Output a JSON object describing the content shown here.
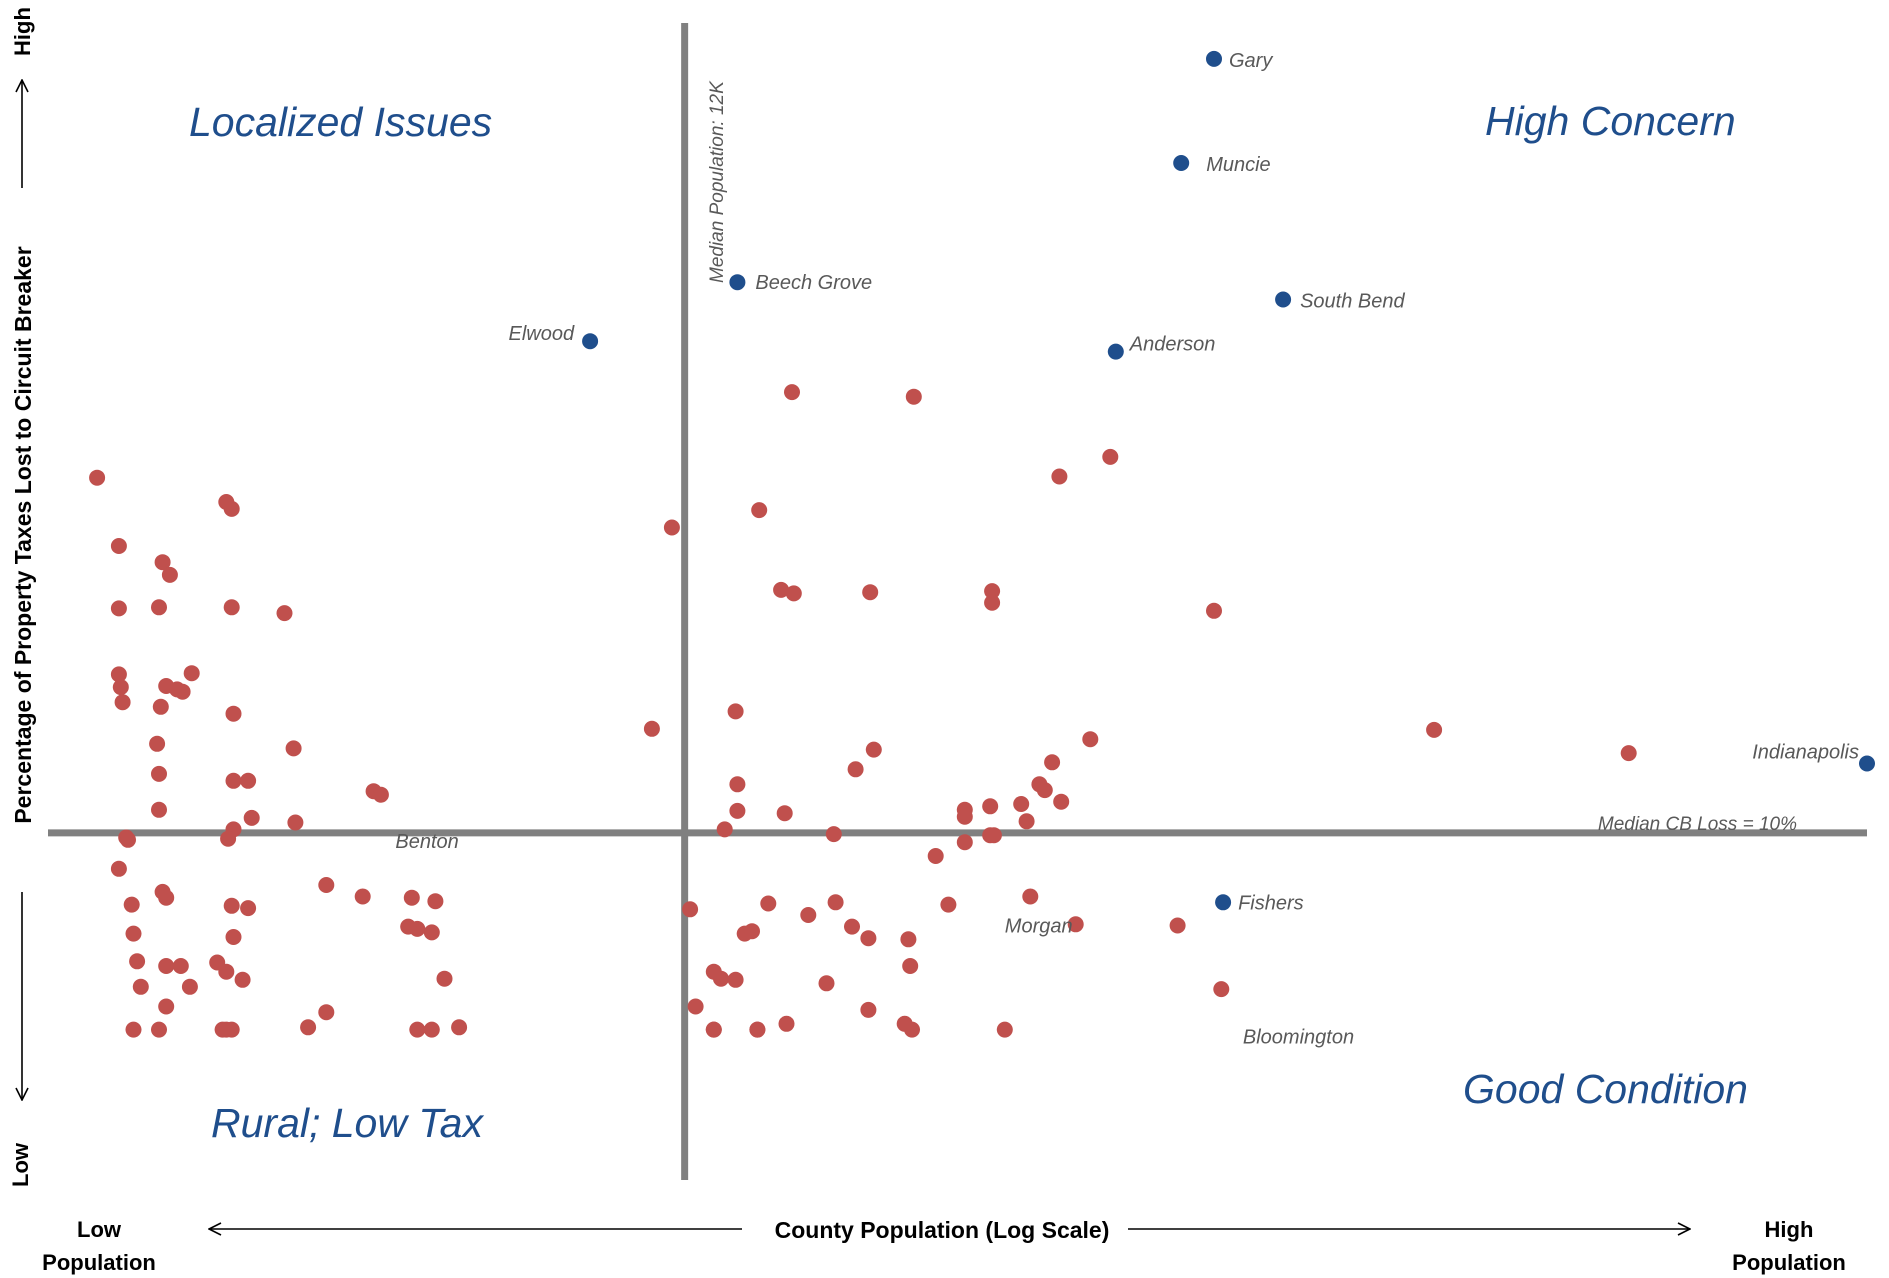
{
  "chart_data": {
    "type": "scatter",
    "xlabel": "County Population  (Log Scale)",
    "x_low_label": [
      "Low",
      "Population"
    ],
    "x_high_label": [
      "High",
      "Population"
    ],
    "ylabel": "Percentage of Property Taxes  Lost to Circuit Breaker",
    "y_high_label": "High",
    "y_low_label": "Low",
    "x_range": [
      0,
      100
    ],
    "y_range": [
      0,
      100
    ],
    "x_log_scale": true,
    "grid": false,
    "legend": "none",
    "quadrants": {
      "top_left": "Localized Issues",
      "top_right": "High Concern",
      "bottom_left": "Rural; Low Tax",
      "bottom_right": "Good Condition"
    },
    "reference_lines": {
      "x_median": {
        "value": 35.0,
        "label": "Median Population: 12K"
      },
      "y_median": {
        "value": 30.0,
        "label": "Median CB Loss = 10%"
      }
    },
    "colors": {
      "highlighted": "#1f4e8c",
      "other": "#c0504d",
      "reference": "#808080",
      "quadrant_text": "#1f4e8c"
    },
    "highlighted_series": [
      {
        "label": "Gary",
        "x": 64.1,
        "y": 96.9
      },
      {
        "label": "Muncie",
        "x": 62.3,
        "y": 87.9
      },
      {
        "label": "Beech Grove",
        "x": 37.9,
        "y": 77.6
      },
      {
        "label": "South Bend",
        "x": 67.9,
        "y": 76.1
      },
      {
        "label": "Elwood",
        "x": 29.8,
        "y": 72.5
      },
      {
        "label": "Anderson",
        "x": 58.7,
        "y": 71.6
      },
      {
        "label": "Indianapolis",
        "x": 100.0,
        "y": 36.0
      },
      {
        "label": "Fishers",
        "x": 64.6,
        "y": 24.0
      }
    ],
    "other_labels": [
      {
        "label": "Benton",
        "x": 19.1,
        "y": 29.3
      },
      {
        "label": "Morgan",
        "x": 52.6,
        "y": 22.0
      },
      {
        "label": "Bloomington",
        "x": 64.7,
        "y": 12.4
      }
    ],
    "points": [
      [
        2.7,
        60.7
      ],
      [
        3.9,
        54.8
      ],
      [
        3.9,
        49.4
      ],
      [
        3.9,
        43.7
      ],
      [
        4.0,
        42.6
      ],
      [
        4.1,
        41.3
      ],
      [
        4.3,
        29.6
      ],
      [
        3.9,
        26.9
      ],
      [
        4.4,
        29.4
      ],
      [
        4.7,
        21.3
      ],
      [
        4.9,
        18.9
      ],
      [
        5.1,
        16.7
      ],
      [
        4.7,
        13.0
      ],
      [
        4.6,
        23.8
      ],
      [
        6.3,
        53.4
      ],
      [
        6.1,
        49.5
      ],
      [
        6.0,
        37.7
      ],
      [
        6.2,
        40.9
      ],
      [
        6.1,
        35.1
      ],
      [
        6.1,
        32.0
      ],
      [
        6.7,
        52.3
      ],
      [
        6.5,
        42.7
      ],
      [
        7.4,
        42.2
      ],
      [
        7.9,
        43.8
      ],
      [
        7.1,
        42.4
      ],
      [
        6.3,
        24.9
      ],
      [
        6.5,
        24.4
      ],
      [
        7.3,
        18.5
      ],
      [
        7.8,
        16.7
      ],
      [
        6.1,
        13.0
      ],
      [
        6.5,
        15.0
      ],
      [
        6.5,
        18.5
      ],
      [
        9.8,
        58.6
      ],
      [
        10.1,
        58.0
      ],
      [
        10.2,
        40.3
      ],
      [
        10.1,
        49.5
      ],
      [
        13.0,
        49.0
      ],
      [
        10.2,
        34.5
      ],
      [
        10.2,
        30.3
      ],
      [
        9.9,
        29.5
      ],
      [
        10.1,
        23.7
      ],
      [
        11.0,
        34.5
      ],
      [
        11.2,
        31.3
      ],
      [
        11.0,
        23.5
      ],
      [
        10.2,
        21.0
      ],
      [
        9.8,
        18.0
      ],
      [
        10.7,
        17.3
      ],
      [
        9.3,
        18.8
      ],
      [
        9.8,
        13.0
      ],
      [
        10.1,
        13.0
      ],
      [
        9.6,
        13.0
      ],
      [
        13.6,
        30.9
      ],
      [
        13.5,
        37.3
      ],
      [
        15.3,
        25.5
      ],
      [
        17.3,
        24.5
      ],
      [
        17.9,
        33.6
      ],
      [
        18.3,
        33.3
      ],
      [
        20.0,
        24.4
      ],
      [
        20.3,
        21.7
      ],
      [
        19.8,
        21.9
      ],
      [
        21.3,
        24.1
      ],
      [
        21.1,
        21.4
      ],
      [
        21.8,
        17.4
      ],
      [
        21.1,
        13.0
      ],
      [
        20.3,
        13.0
      ],
      [
        22.6,
        13.2
      ],
      [
        14.3,
        13.2
      ],
      [
        15.3,
        14.5
      ],
      [
        33.2,
        39.0
      ],
      [
        34.3,
        56.4
      ],
      [
        37.9,
        34.2
      ],
      [
        39.1,
        57.9
      ],
      [
        37.9,
        31.9
      ],
      [
        37.8,
        40.5
      ],
      [
        37.2,
        30.3
      ],
      [
        35.6,
        15.0
      ],
      [
        37.0,
        17.4
      ],
      [
        36.6,
        18.0
      ],
      [
        37.8,
        17.3
      ],
      [
        35.3,
        23.4
      ],
      [
        36.6,
        13.0
      ],
      [
        36.6,
        13.0
      ],
      [
        38.3,
        21.3
      ],
      [
        40.9,
        68.1
      ],
      [
        40.3,
        51.0
      ],
      [
        41.0,
        50.7
      ],
      [
        45.2,
        50.8
      ],
      [
        47.6,
        67.7
      ],
      [
        51.9,
        50.9
      ],
      [
        51.9,
        49.9
      ],
      [
        45.4,
        37.2
      ],
      [
        43.2,
        29.9
      ],
      [
        44.4,
        35.5
      ],
      [
        40.5,
        31.7
      ],
      [
        41.8,
        22.9
      ],
      [
        45.1,
        20.9
      ],
      [
        39.6,
        23.9
      ],
      [
        43.3,
        24.0
      ],
      [
        44.2,
        21.9
      ],
      [
        38.7,
        21.5
      ],
      [
        42.8,
        17.0
      ],
      [
        39.0,
        13.0
      ],
      [
        40.6,
        13.5
      ],
      [
        39.0,
        13.0
      ],
      [
        47.5,
        13.0
      ],
      [
        45.1,
        14.7
      ],
      [
        47.1,
        13.5
      ],
      [
        47.3,
        20.8
      ],
      [
        47.4,
        18.5
      ],
      [
        55.6,
        60.8
      ],
      [
        58.4,
        62.5
      ],
      [
        57.3,
        38.1
      ],
      [
        55.2,
        36.1
      ],
      [
        54.5,
        34.2
      ],
      [
        54.8,
        33.7
      ],
      [
        55.7,
        32.7
      ],
      [
        53.5,
        32.5
      ],
      [
        51.8,
        32.3
      ],
      [
        50.4,
        32.0
      ],
      [
        50.4,
        31.4
      ],
      [
        53.8,
        31.0
      ],
      [
        51.8,
        29.8
      ],
      [
        52.0,
        29.8
      ],
      [
        50.4,
        29.2
      ],
      [
        48.8,
        28.0
      ],
      [
        49.5,
        23.8
      ],
      [
        56.5,
        22.1
      ],
      [
        54.0,
        24.5
      ],
      [
        64.1,
        49.2
      ],
      [
        62.1,
        22.0
      ],
      [
        64.5,
        16.5
      ],
      [
        52.6,
        13.0
      ],
      [
        76.2,
        38.9
      ],
      [
        86.9,
        36.9
      ]
    ]
  }
}
